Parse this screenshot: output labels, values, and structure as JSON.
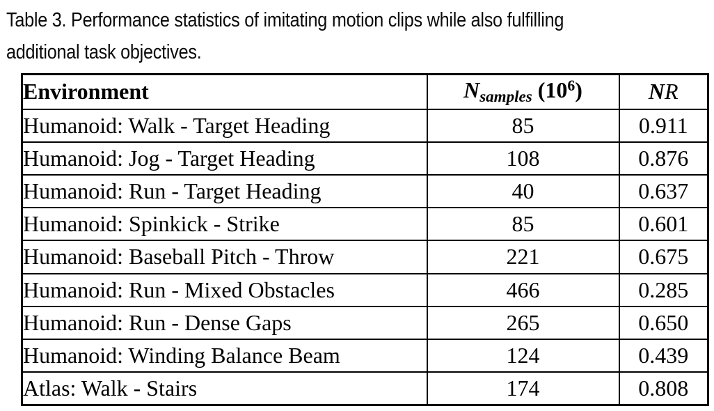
{
  "caption": {
    "line1": "Table 3.  Performance statistics of imitating motion clips while also fulfilling",
    "line2": "additional task objectives."
  },
  "table": {
    "headers": {
      "environment": "Environment",
      "ns_n": "N",
      "ns_sub": "samples",
      "ns_open": " (10",
      "ns_exp": "6",
      "ns_close": ")",
      "nr_n": "N",
      "nr_r": "R"
    },
    "rows": [
      {
        "environment": "Humanoid: Walk - Target Heading",
        "n_samples": "85",
        "nr": "0.911"
      },
      {
        "environment": "Humanoid: Jog - Target Heading",
        "n_samples": "108",
        "nr": "0.876"
      },
      {
        "environment": "Humanoid: Run - Target Heading",
        "n_samples": "40",
        "nr": "0.637"
      },
      {
        "environment": "Humanoid: Spinkick - Strike",
        "n_samples": "85",
        "nr": "0.601"
      },
      {
        "environment": "Humanoid: Baseball Pitch - Throw",
        "n_samples": "221",
        "nr": "0.675"
      },
      {
        "environment": "Humanoid: Run - Mixed Obstacles",
        "n_samples": "466",
        "nr": "0.285"
      },
      {
        "environment": "Humanoid: Run - Dense Gaps",
        "n_samples": "265",
        "nr": "0.650"
      },
      {
        "environment": "Humanoid: Winding Balance Beam",
        "n_samples": "124",
        "nr": "0.439"
      },
      {
        "environment": "Atlas: Walk - Stairs",
        "n_samples": "174",
        "nr": "0.808"
      }
    ]
  }
}
